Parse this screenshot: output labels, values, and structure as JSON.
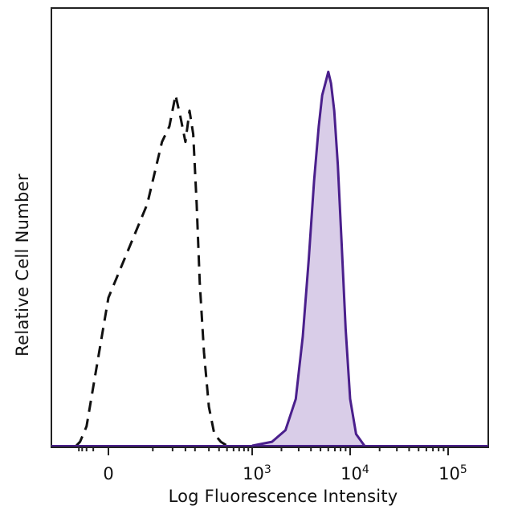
{
  "chart_data": {
    "type": "area",
    "xlabel": "Log Fluorescence Intensity",
    "ylabel": "Relative Cell Number",
    "x_scale": "biexponential",
    "x_tick_labels": [
      {
        "base": "0",
        "exp": ""
      },
      {
        "base": "10",
        "exp": "3"
      },
      {
        "base": "10",
        "exp": "4"
      },
      {
        "base": "10",
        "exp": "5"
      }
    ],
    "x_tick_values": [
      0,
      1000,
      10000,
      100000
    ],
    "ylim": [
      0,
      100
    ],
    "grid": false,
    "series": [
      {
        "style": "dashed",
        "color": "#111111",
        "fill": "none",
        "x": [
          -250,
          -180,
          -100,
          -40,
          0,
          40,
          70,
          90,
          110,
          130,
          150,
          170,
          190,
          210,
          230,
          260,
          300,
          350,
          420,
          500
        ],
        "y": [
          0,
          1,
          5,
          18,
          38,
          62,
          78,
          82,
          90,
          84,
          78,
          86,
          80,
          62,
          42,
          24,
          10,
          3,
          1,
          0
        ]
      },
      {
        "style": "solid",
        "color": "#4a1f8c",
        "fill": "#d9cde8",
        "x": [
          1000,
          1600,
          2200,
          2800,
          3300,
          3800,
          4300,
          4800,
          5200,
          5600,
          6000,
          6400,
          6900,
          7500,
          8200,
          9000,
          10000,
          11500,
          14000
        ],
        "y": [
          0,
          1,
          4,
          12,
          28,
          48,
          68,
          82,
          90,
          93,
          96,
          93,
          86,
          72,
          52,
          30,
          12,
          3,
          0
        ]
      }
    ]
  }
}
